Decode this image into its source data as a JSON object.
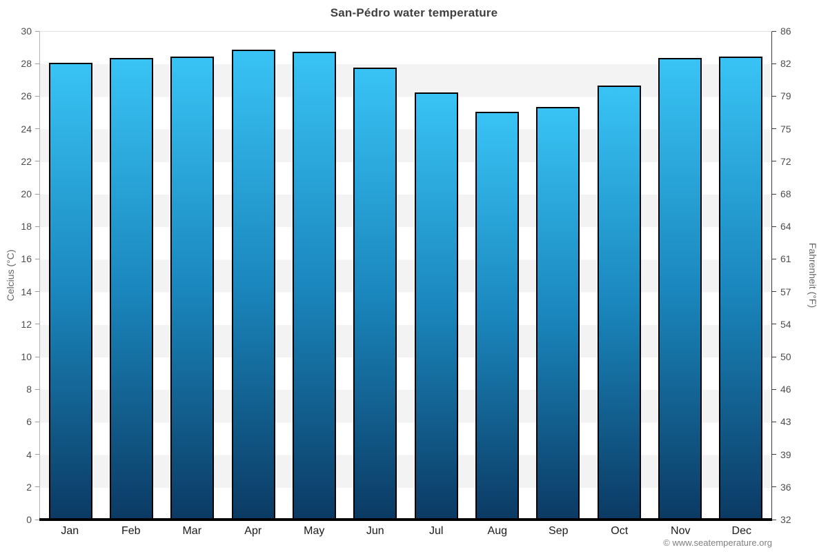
{
  "watermark": "© www.seatemperature.org",
  "chart_data": {
    "type": "bar",
    "title": "San-Pédro water temperature",
    "categories": [
      "Jan",
      "Feb",
      "Mar",
      "Apr",
      "May",
      "Jun",
      "Jul",
      "Aug",
      "Sep",
      "Oct",
      "Nov",
      "Dec"
    ],
    "values": [
      28.0,
      28.3,
      28.4,
      28.8,
      28.7,
      27.7,
      26.2,
      25.0,
      25.3,
      26.6,
      28.3,
      28.4
    ],
    "ylabel_left": "Celcius (°C)",
    "ylabel_right": "Fahrenheit (°F)",
    "ylim_left": [
      0,
      30
    ],
    "yticks_left": [
      0,
      2,
      4,
      6,
      8,
      10,
      12,
      14,
      16,
      18,
      20,
      22,
      24,
      26,
      28,
      30
    ],
    "yticks_right_labels": [
      "32",
      "36",
      "39",
      "43",
      "46",
      "50",
      "54",
      "57",
      "61",
      "64",
      "68",
      "72",
      "75",
      "79",
      "82",
      "86"
    ],
    "legend": "none",
    "grid": "alternating horizontal bands, 2°C each",
    "colors": {
      "bar_top": "#39c3f5",
      "bar_mid": "#1a87bd",
      "bar_bottom": "#0b3a63",
      "bar_border": "#000000",
      "band_white": "#ffffff",
      "band_gray": "#f3f3f3"
    }
  }
}
